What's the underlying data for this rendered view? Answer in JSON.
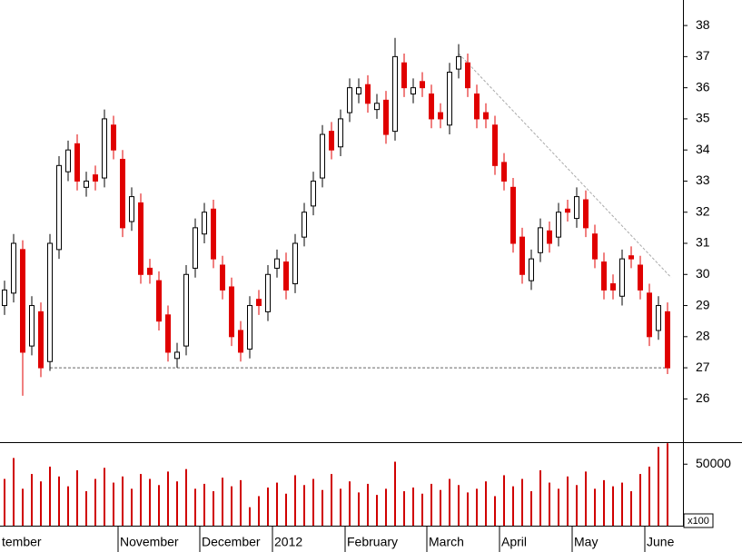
{
  "chart_data": {
    "type": "candlestick",
    "categories": [
      "tember",
      null,
      null,
      null,
      null,
      null,
      null,
      null,
      null,
      null,
      null,
      null,
      null,
      "November",
      null,
      null,
      null,
      null,
      null,
      null,
      null,
      null,
      "December",
      null,
      null,
      null,
      null,
      null,
      null,
      null,
      "2012",
      null,
      null,
      null,
      null,
      null,
      null,
      null,
      "February",
      null,
      null,
      null,
      null,
      null,
      null,
      null,
      null,
      "March",
      null,
      null,
      null,
      null,
      null,
      null,
      null,
      "April",
      null,
      null,
      null,
      null,
      null,
      null,
      null,
      "May",
      null,
      null,
      null,
      null,
      null,
      null,
      null,
      "June",
      null,
      null
    ],
    "open": [
      29,
      29.4,
      30.8,
      27.7,
      28.8,
      27.2,
      30.8,
      33.3,
      34.2,
      32.8,
      33.2,
      33.1,
      34.8,
      33.7,
      31.7,
      32.3,
      30.2,
      29.8,
      28.7,
      27.3,
      27.7,
      30.2,
      31.3,
      32.1,
      30.3,
      29.6,
      28.2,
      27.6,
      29.2,
      28.8,
      30.2,
      30.4,
      29.7,
      31.2,
      32.2,
      33.1,
      34.6,
      34.1,
      35.2,
      35.8,
      36.1,
      35.3,
      35.6,
      34.6,
      36.8,
      35.8,
      36.2,
      35.8,
      35.2,
      34.8,
      36.6,
      36.8,
      35.8,
      35.2,
      34.8,
      33.6,
      32.8,
      31.2,
      29.8,
      30.7,
      31.4,
      31.2,
      32.1,
      31.8,
      32.4,
      31.3,
      30.4,
      29.7,
      29.3,
      30.6,
      30.3,
      29.4,
      28.2,
      28.8
    ],
    "high": [
      29.8,
      31.3,
      31.1,
      29.3,
      29.1,
      31.3,
      33.8,
      34.3,
      34.5,
      33.3,
      33.5,
      35.3,
      35.1,
      34,
      32.8,
      32.6,
      30.5,
      30.1,
      29,
      27.8,
      30.3,
      31.8,
      32.3,
      32.4,
      30.6,
      29.9,
      28.5,
      29.3,
      29.5,
      30.3,
      30.8,
      30.7,
      31.3,
      32.3,
      33.3,
      34.8,
      34.9,
      35.3,
      36.3,
      36.3,
      36.4,
      35.8,
      35.9,
      37.6,
      37.1,
      36.3,
      36.5,
      36.1,
      35.5,
      36.8,
      37.4,
      37.1,
      36.1,
      35.5,
      35.1,
      33.9,
      33.1,
      31.5,
      30.8,
      31.8,
      31.7,
      32.3,
      32.4,
      32.8,
      32.7,
      31.6,
      30.7,
      30,
      30.8,
      30.9,
      30.6,
      29.7,
      29.3,
      29.1
    ],
    "low": [
      28.7,
      29.1,
      26.1,
      27.4,
      26.7,
      26.9,
      30.5,
      33,
      32.7,
      32.5,
      32.7,
      32.8,
      33.7,
      31.2,
      31.4,
      29.7,
      29.7,
      28.2,
      27.2,
      27,
      27.4,
      29.9,
      31,
      30.2,
      29.2,
      27.7,
      27.2,
      27.3,
      28.7,
      28.5,
      29.9,
      29.2,
      29.4,
      30.9,
      31.9,
      32.8,
      33.7,
      33.8,
      34.9,
      35.5,
      35.2,
      35,
      34.2,
      34.3,
      35.7,
      35.5,
      35.7,
      34.7,
      34.7,
      34.5,
      36.3,
      35.7,
      34.7,
      34.7,
      33.2,
      32.7,
      30.7,
      29.7,
      29.5,
      30.4,
      30.7,
      30.9,
      31.7,
      31.5,
      31.2,
      30.2,
      29.2,
      29.2,
      29,
      30.2,
      29.2,
      27.7,
      27.9,
      26.8
    ],
    "close": [
      29.5,
      31,
      27.5,
      29,
      27,
      31,
      33.5,
      34,
      33,
      33,
      33,
      35,
      34,
      31.5,
      32.5,
      30,
      30,
      28.5,
      27.5,
      27.5,
      30,
      31.5,
      32,
      30.5,
      29.5,
      28,
      27.5,
      29,
      29,
      30,
      30.5,
      29.5,
      31,
      32,
      33,
      34.5,
      34,
      35,
      36,
      36,
      35.5,
      35.5,
      34.5,
      37,
      36,
      36,
      36,
      35,
      35,
      36.5,
      37,
      36,
      35,
      35,
      33.5,
      33,
      31,
      30,
      30.5,
      31.5,
      31,
      32,
      32,
      32.5,
      31.5,
      30.5,
      29.5,
      29.5,
      30.5,
      30.5,
      29.5,
      28,
      29,
      27
    ],
    "volume": [
      38000,
      55000,
      30000,
      42000,
      36000,
      48000,
      40000,
      32000,
      45000,
      28000,
      38000,
      47000,
      35000,
      40000,
      30000,
      42000,
      38000,
      33000,
      44000,
      36000,
      46000,
      30000,
      34000,
      28000,
      39000,
      32000,
      37000,
      15000,
      24000,
      31000,
      35000,
      26000,
      41000,
      33000,
      38000,
      29000,
      42000,
      30000,
      36000,
      27000,
      34000,
      25000,
      30000,
      52000,
      28000,
      31000,
      26000,
      34000,
      29000,
      38000,
      33000,
      27000,
      30000,
      36000,
      24000,
      41000,
      32000,
      38000,
      28000,
      45000,
      35000,
      30000,
      40000,
      33000,
      44000,
      30000,
      37000,
      32000,
      35000,
      28000,
      42000,
      48000,
      64000,
      67000
    ],
    "up_color": "#ffffff",
    "down_color": "#e00000",
    "volume_color": "#d00000",
    "ylim": [
      24.61,
      38.82
    ],
    "yticks": [
      26,
      27,
      28,
      29,
      30,
      31,
      32,
      33,
      34,
      35,
      36,
      37,
      38
    ],
    "volume_ylim": [
      0,
      67900
    ],
    "volume_yticks": [
      50000
    ],
    "volume_unit_label": "x100",
    "support_line": 27,
    "trend_line": [
      37.1,
      29.9
    ]
  }
}
